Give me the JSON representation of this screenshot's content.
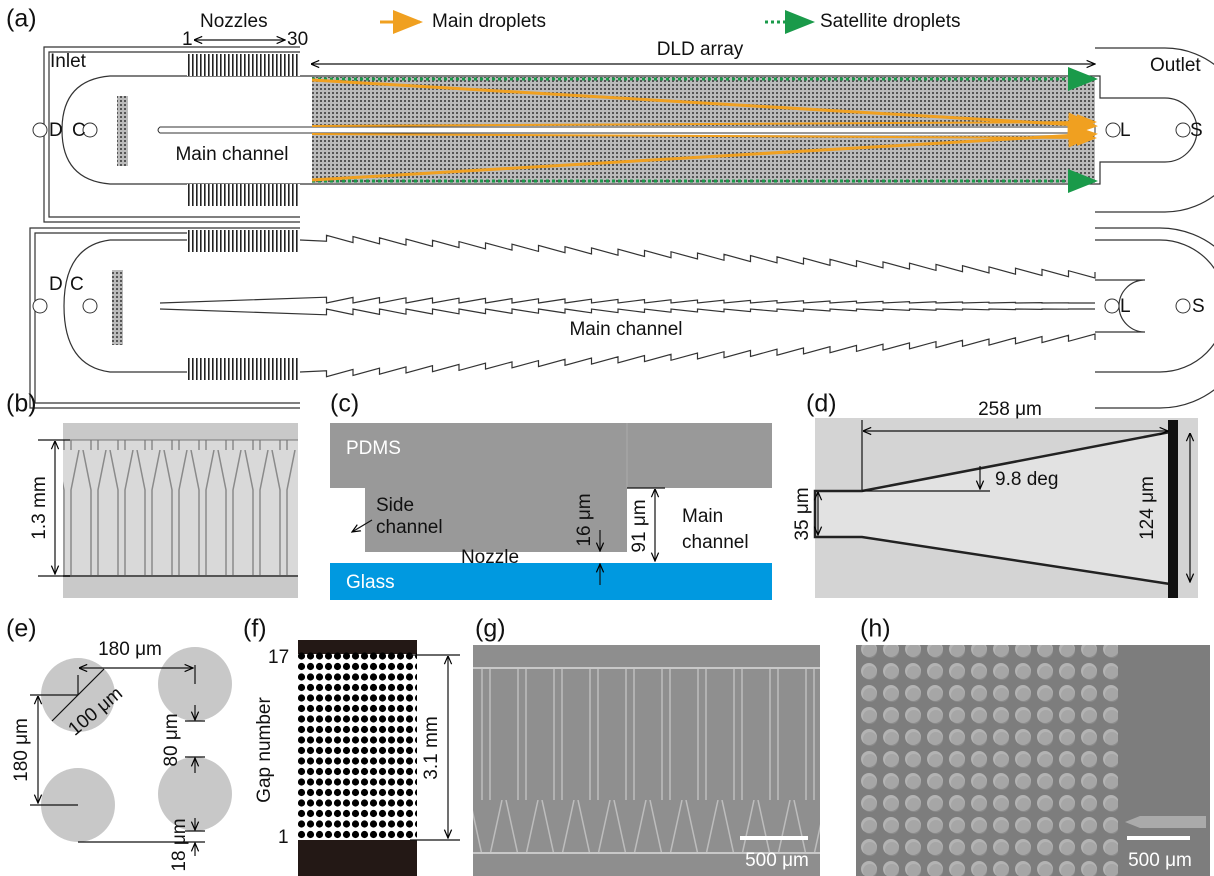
{
  "panel_a": {
    "label": "(a)",
    "nozzles": "Nozzles",
    "nozzle_first": "1",
    "nozzle_last": "30",
    "legend": [
      "Main droplets",
      "Satellite droplets"
    ],
    "dld_array": "DLD array",
    "inlet": "Inlet",
    "outlet": "Outlet",
    "top_device": {
      "ports": [
        "D",
        "C",
        "L",
        "S"
      ],
      "main_channel": "Main channel"
    },
    "bottom_device": {
      "ports": [
        "D",
        "C",
        "L",
        "S"
      ],
      "main_channel": "Main channel"
    }
  },
  "panel_b": {
    "label": "(b)",
    "height": "1.3 mm"
  },
  "panel_c": {
    "label": "(c)",
    "pdms": "PDMS",
    "side_channel": [
      "Side",
      "channel"
    ],
    "nozzle_height": "16 μm",
    "main_height": "91 μm",
    "main_channel": [
      "Main",
      "channel"
    ],
    "nozzle": "Nozzle",
    "glass": "Glass"
  },
  "panel_d": {
    "label": "(d)",
    "length": "258 μm",
    "angle": "9.8 deg",
    "inlet_width": "35 μm",
    "outlet_width": "124 μm"
  },
  "panel_e": {
    "label": "(e)",
    "horizontal_pitch": "180 μm",
    "diameter": "100 μm",
    "vertical_pitch": "180 μm",
    "gap": "80 μm",
    "shift": "18 μm"
  },
  "panel_f": {
    "label": "(f)",
    "gap_max": "17",
    "gap_min": "1",
    "axis_label": "Gap number",
    "width": "3.1 mm"
  },
  "panel_g": {
    "label": "(g)",
    "scale_bar": "500 μm"
  },
  "panel_h": {
    "label": "(h)",
    "scale_bar": "500 μm"
  }
}
